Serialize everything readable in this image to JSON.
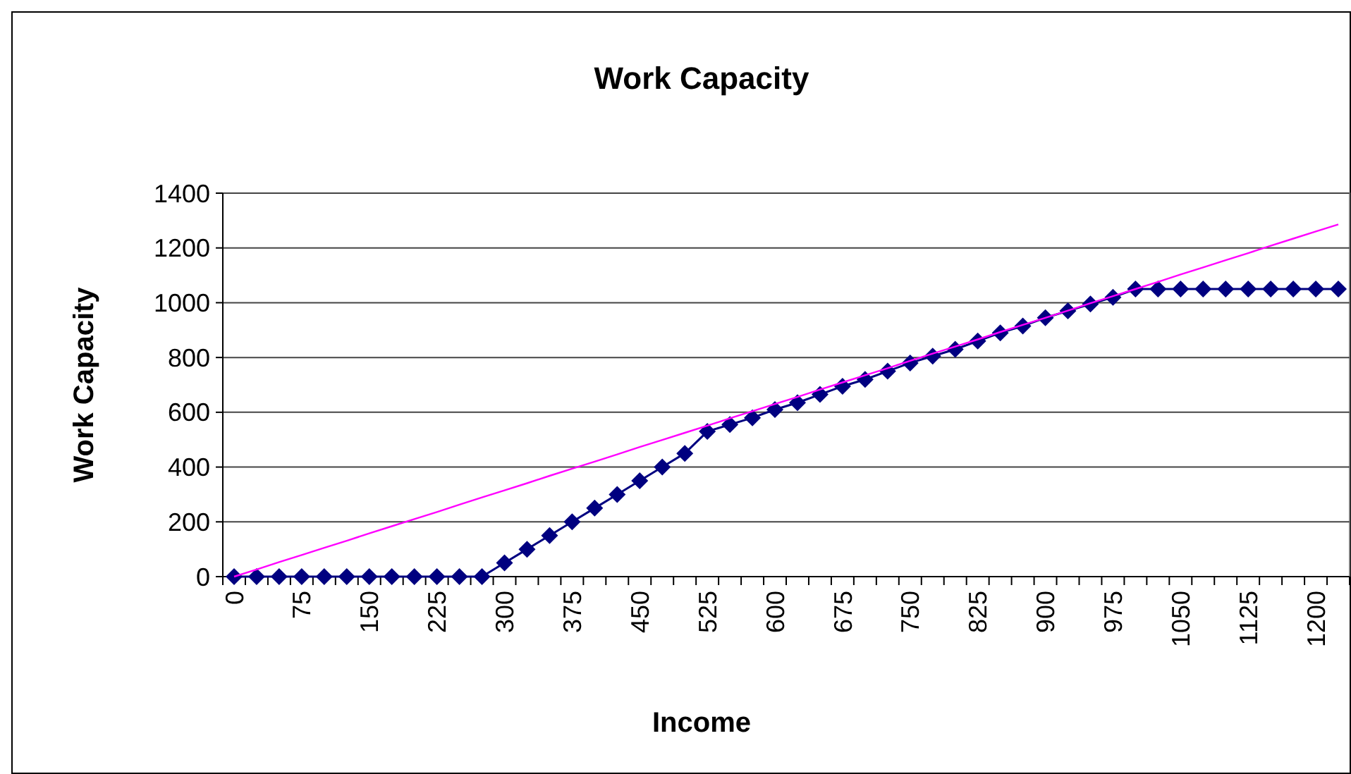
{
  "chart_data": {
    "type": "line",
    "title": "Work Capacity",
    "xlabel": "Income",
    "ylabel": "Work Capacity",
    "categories": [
      "0",
      null,
      null,
      "75",
      null,
      null,
      "150",
      null,
      null,
      "225",
      null,
      null,
      "300",
      null,
      null,
      "375",
      null,
      null,
      "450",
      null,
      null,
      "525",
      null,
      null,
      "600",
      null,
      null,
      "675",
      null,
      null,
      "750",
      null,
      null,
      "825",
      null,
      null,
      "900",
      null,
      null,
      "975",
      null,
      null,
      "1050",
      null,
      null,
      "1125",
      null,
      null,
      "1200",
      null
    ],
    "series": [
      {
        "color": "#000080",
        "marker": "diamond",
        "values": [
          0,
          0,
          0,
          0,
          0,
          0,
          0,
          0,
          0,
          0,
          0,
          0,
          50,
          100,
          150,
          200,
          250,
          300,
          350,
          400,
          450,
          530,
          555,
          580,
          610,
          635,
          665,
          695,
          720,
          750,
          780,
          805,
          830,
          860,
          890,
          915,
          945,
          970,
          995,
          1020,
          1050,
          1050,
          1050,
          1050,
          1050,
          1050,
          1050,
          1050,
          1050,
          1050
        ]
      },
      {
        "color": "#ff00ff",
        "marker": "none",
        "values": [
          0,
          26,
          53,
          79,
          105,
          131,
          158,
          184,
          210,
          236,
          263,
          289,
          315,
          341,
          368,
          394,
          420,
          446,
          473,
          499,
          525,
          551,
          578,
          604,
          630,
          656,
          683,
          709,
          735,
          761,
          788,
          814,
          840,
          866,
          893,
          919,
          945,
          971,
          998,
          1024,
          1050,
          1076,
          1103,
          1129,
          1155,
          1181,
          1208,
          1234,
          1260,
          1286
        ]
      }
    ],
    "ylim": [
      0,
      1400
    ],
    "yticks": [
      0,
      200,
      400,
      600,
      800,
      1000,
      1200,
      1400
    ],
    "grid": "y"
  }
}
